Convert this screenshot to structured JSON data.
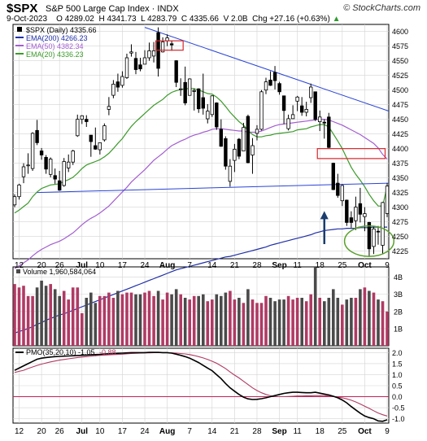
{
  "header": {
    "symbol": "$SPX",
    "name": "S&P 500 Large Cap Index",
    "exchange": "INDX",
    "watermark": "© StockCharts.com",
    "date": "9-Oct-2023",
    "open": "O 4289.02",
    "high": "H 4341.73",
    "low": "L 4283.79",
    "close": "C 4335.66",
    "volume": "V 2.0B",
    "change": "Chg +27.16 (+0.63%)",
    "change_arrow": "▲"
  },
  "price_legend": [
    {
      "text": "$SPX (Daily) 4335.66",
      "color": "#000000",
      "swatch": "box"
    },
    {
      "text": "EMA(200) 4266.23",
      "color": "#1f2fa6",
      "swatch": "line"
    },
    {
      "text": "EMA(50) 4382.34",
      "color": "#a35ed0",
      "swatch": "line"
    },
    {
      "text": "EMA(20) 4336.23",
      "color": "#3c9a2a",
      "swatch": "line"
    }
  ],
  "volume_legend": "Volume 1,960,584,064",
  "pmo_legend": {
    "text": "PMO(35,20,10) -1.05,",
    "signal_text": "-0.88"
  },
  "colors": {
    "price_up": "#ffffff",
    "price_down": "#000000",
    "ema200": "#1f2fa6",
    "ema50": "#a35ed0",
    "ema20": "#3c9a2a",
    "trendline": "#2a45d6",
    "vol_up": "#b03a64",
    "vol_down": "#4a4a4a",
    "pmo": "#000000",
    "pmo_signal": "#b03a64",
    "zero_line": "#c0245a",
    "box": "#d6262b",
    "ellipse": "#5aa02c",
    "arrow": "#1a3d6e",
    "grid": "#d3d3d3"
  },
  "chart_data": {
    "type": "candlestick",
    "price_axis": {
      "ticks": [
        4225,
        4250,
        4275,
        4300,
        4325,
        4350,
        4375,
        4400,
        4425,
        4450,
        4475,
        4500,
        4525,
        4550,
        4575,
        4600
      ],
      "range": [
        4212,
        4612
      ]
    },
    "volume_axis": {
      "ticks": [
        "1B",
        "2B",
        "3B",
        "4B"
      ],
      "values": [
        1,
        2,
        3,
        4
      ],
      "range": [
        0,
        4.6
      ]
    },
    "pmo_axis": {
      "ticks": [
        "-1.0",
        "-0.5",
        "0.0",
        "0.5",
        "1.0",
        "1.5",
        "2.0"
      ],
      "values": [
        -1.0,
        -0.5,
        0.0,
        0.5,
        1.0,
        1.5,
        2.0
      ],
      "range": [
        -1.2,
        2.2
      ]
    },
    "x_axis": {
      "labels": [
        {
          "text": "12",
          "date": "2023-06-12",
          "bold": false
        },
        {
          "text": "20",
          "date": "2023-06-20",
          "bold": false
        },
        {
          "text": "26",
          "date": "2023-06-26",
          "bold": false
        },
        {
          "text": "Jul",
          "date": "2023-07-03",
          "bold": true
        },
        {
          "text": "10",
          "date": "2023-07-10",
          "bold": false
        },
        {
          "text": "17",
          "date": "2023-07-17",
          "bold": false
        },
        {
          "text": "24",
          "date": "2023-07-24",
          "bold": false
        },
        {
          "text": "Aug",
          "date": "2023-07-31",
          "bold": true
        },
        {
          "text": "7",
          "date": "2023-08-07",
          "bold": false
        },
        {
          "text": "14",
          "date": "2023-08-14",
          "bold": false
        },
        {
          "text": "21",
          "date": "2023-08-21",
          "bold": false
        },
        {
          "text": "28",
          "date": "2023-08-28",
          "bold": false
        },
        {
          "text": "Sep",
          "date": "2023-09-05",
          "bold": true
        },
        {
          "text": "11",
          "date": "2023-09-11",
          "bold": false
        },
        {
          "text": "18",
          "date": "2023-09-18",
          "bold": false
        },
        {
          "text": "25",
          "date": "2023-09-25",
          "bold": false
        },
        {
          "text": "Oct",
          "date": "2023-10-02",
          "bold": true
        },
        {
          "text": "9",
          "date": "2023-10-09",
          "bold": false
        }
      ]
    },
    "dates": [
      "2023-06-09",
      "2023-06-12",
      "2023-06-13",
      "2023-06-14",
      "2023-06-15",
      "2023-06-16",
      "2023-06-20",
      "2023-06-21",
      "2023-06-22",
      "2023-06-23",
      "2023-06-26",
      "2023-06-27",
      "2023-06-28",
      "2023-06-29",
      "2023-06-30",
      "2023-07-03",
      "2023-07-05",
      "2023-07-06",
      "2023-07-07",
      "2023-07-10",
      "2023-07-11",
      "2023-07-12",
      "2023-07-13",
      "2023-07-14",
      "2023-07-17",
      "2023-07-18",
      "2023-07-19",
      "2023-07-20",
      "2023-07-21",
      "2023-07-24",
      "2023-07-25",
      "2023-07-26",
      "2023-07-27",
      "2023-07-28",
      "2023-07-31",
      "2023-08-01",
      "2023-08-02",
      "2023-08-03",
      "2023-08-04",
      "2023-08-07",
      "2023-08-08",
      "2023-08-09",
      "2023-08-10",
      "2023-08-11",
      "2023-08-14",
      "2023-08-15",
      "2023-08-16",
      "2023-08-17",
      "2023-08-18",
      "2023-08-21",
      "2023-08-22",
      "2023-08-23",
      "2023-08-24",
      "2023-08-25",
      "2023-08-28",
      "2023-08-29",
      "2023-08-30",
      "2023-08-31",
      "2023-09-01",
      "2023-09-05",
      "2023-09-06",
      "2023-09-07",
      "2023-09-08",
      "2023-09-11",
      "2023-09-12",
      "2023-09-13",
      "2023-09-14",
      "2023-09-15",
      "2023-09-18",
      "2023-09-19",
      "2023-09-20",
      "2023-09-21",
      "2023-09-22",
      "2023-09-25",
      "2023-09-26",
      "2023-09-27",
      "2023-09-28",
      "2023-09-29",
      "2023-10-02",
      "2023-10-03",
      "2023-10-04",
      "2023-10-05",
      "2023-10-06",
      "2023-10-09"
    ],
    "ohlc": [
      [
        4304,
        4322,
        4300,
        4318
      ],
      [
        4318,
        4340,
        4313,
        4338
      ],
      [
        4352,
        4375,
        4341,
        4369
      ],
      [
        4372,
        4392,
        4357,
        4372
      ],
      [
        4366,
        4428,
        4362,
        4426
      ],
      [
        4431,
        4449,
        4406,
        4410
      ],
      [
        4396,
        4401,
        4381,
        4389
      ],
      [
        4385,
        4389,
        4357,
        4365
      ],
      [
        4356,
        4385,
        4351,
        4382
      ],
      [
        4354,
        4366,
        4340,
        4348
      ],
      [
        4345,
        4362,
        4328,
        4329
      ],
      [
        4337,
        4384,
        4335,
        4378
      ],
      [
        4367,
        4390,
        4360,
        4377
      ],
      [
        4377,
        4398,
        4372,
        4396
      ],
      [
        4422,
        4458,
        4420,
        4450
      ],
      [
        4450,
        4457,
        4442,
        4456
      ],
      [
        4450,
        4457,
        4437,
        4446
      ],
      [
        4423,
        4423,
        4386,
        4412
      ],
      [
        4405,
        4436,
        4398,
        4399
      ],
      [
        4398,
        4410,
        4390,
        4410
      ],
      [
        4415,
        4443,
        4412,
        4439
      ],
      [
        4467,
        4488,
        4457,
        4472
      ],
      [
        4491,
        4517,
        4486,
        4510
      ],
      [
        4514,
        4528,
        4497,
        4505
      ],
      [
        4508,
        4532,
        4504,
        4523
      ],
      [
        4521,
        4562,
        4519,
        4555
      ],
      [
        4563,
        4578,
        4557,
        4565
      ],
      [
        4554,
        4565,
        4527,
        4535
      ],
      [
        4543,
        4555,
        4532,
        4536
      ],
      [
        4544,
        4568,
        4545,
        4555
      ],
      [
        4555,
        4581,
        4550,
        4567
      ],
      [
        4558,
        4582,
        4547,
        4567
      ],
      [
        4598,
        4607,
        4523,
        4537
      ],
      [
        4565,
        4590,
        4564,
        4582
      ],
      [
        4584,
        4595,
        4575,
        4589
      ],
      [
        4579,
        4584,
        4567,
        4577
      ],
      [
        4550,
        4551,
        4505,
        4513
      ],
      [
        4501,
        4520,
        4490,
        4502
      ],
      [
        4513,
        4540,
        4474,
        4478
      ],
      [
        4491,
        4520,
        4491,
        4519
      ],
      [
        4498,
        4503,
        4465,
        4499
      ],
      [
        4502,
        4503,
        4461,
        4468
      ],
      [
        4487,
        4528,
        4458,
        4469
      ],
      [
        4451,
        4476,
        4443,
        4464
      ],
      [
        4458,
        4491,
        4454,
        4490
      ],
      [
        4478,
        4479,
        4432,
        4437
      ],
      [
        4433,
        4450,
        4403,
        4404
      ],
      [
        4417,
        4421,
        4364,
        4370
      ],
      [
        4344,
        4382,
        4335,
        4370
      ],
      [
        4380,
        4408,
        4360,
        4399
      ],
      [
        4416,
        4418,
        4382,
        4387
      ],
      [
        4396,
        4444,
        4396,
        4436
      ],
      [
        4455,
        4458,
        4375,
        4376
      ],
      [
        4389,
        4418,
        4357,
        4405
      ],
      [
        4426,
        4440,
        4414,
        4433
      ],
      [
        4433,
        4500,
        4431,
        4497
      ],
      [
        4500,
        4521,
        4493,
        4514
      ],
      [
        4517,
        4532,
        4507,
        4508
      ],
      [
        4530,
        4541,
        4501,
        4516
      ],
      [
        4511,
        4514,
        4492,
        4497
      ],
      [
        4490,
        4490,
        4442,
        4465
      ],
      [
        4434,
        4458,
        4431,
        4451
      ],
      [
        4451,
        4474,
        4451,
        4458
      ],
      [
        4481,
        4490,
        4464,
        4488
      ],
      [
        4473,
        4488,
        4456,
        4462
      ],
      [
        4462,
        4480,
        4455,
        4467
      ],
      [
        4487,
        4511,
        4478,
        4505
      ],
      [
        4497,
        4497,
        4447,
        4450
      ],
      [
        4446,
        4465,
        4430,
        4454
      ],
      [
        4445,
        4450,
        4417,
        4444
      ],
      [
        4454,
        4461,
        4401,
        4402
      ],
      [
        4375,
        4376,
        4329,
        4330
      ],
      [
        4341,
        4357,
        4316,
        4320
      ],
      [
        4311,
        4339,
        4302,
        4337
      ],
      [
        4312,
        4313,
        4268,
        4274
      ],
      [
        4282,
        4293,
        4265,
        4274
      ],
      [
        4277,
        4318,
        4261,
        4300
      ],
      [
        4306,
        4333,
        4274,
        4288
      ],
      [
        4284,
        4300,
        4259,
        4289
      ],
      [
        4274,
        4275,
        4216,
        4229
      ],
      [
        4233,
        4268,
        4220,
        4263
      ],
      [
        4259,
        4268,
        4236,
        4258
      ],
      [
        4235,
        4309,
        4220,
        4308
      ],
      [
        4289,
        4341,
        4283,
        4336
      ]
    ],
    "volume_billions": [
      3.6,
      3.4,
      3.5,
      2.9,
      2.9,
      3.4,
      3.8,
      3.5,
      3.6,
      3.3,
      2.9,
      3.2,
      2.7,
      3.4,
      3.4,
      1.9,
      2.8,
      3.1,
      2.5,
      2.9,
      2.9,
      3.1,
      2.8,
      3.2,
      3.0,
      3.1,
      3.1,
      3.0,
      3.0,
      3.1,
      3.2,
      2.9,
      3.2,
      2.7,
      3.1,
      3.0,
      3.3,
      3.0,
      2.8,
      2.7,
      2.9,
      2.9,
      3.0,
      2.6,
      2.7,
      3.0,
      2.9,
      3.1,
      3.2,
      2.7,
      2.8,
      2.5,
      3.3,
      2.7,
      2.5,
      2.5,
      2.9,
      2.8,
      2.6,
      2.7,
      2.7,
      2.9,
      2.7,
      2.8,
      2.8,
      2.6,
      3.0,
      4.8,
      2.8,
      2.6,
      2.8,
      3.3,
      2.8,
      2.4,
      2.7,
      2.8,
      2.8,
      3.3,
      3.4,
      3.2,
      3.1,
      2.7,
      2.6,
      2.0
    ],
    "ema200": [
      4085,
      4088,
      4090,
      4093,
      4096,
      4100,
      4103,
      4107,
      4110,
      4113,
      4116,
      4118,
      4121,
      4124,
      4127,
      4130,
      4133,
      4136,
      4139,
      4142,
      4145,
      4148,
      4151,
      4154,
      4157,
      4160,
      4163,
      4166,
      4169,
      4172,
      4175,
      4178,
      4181,
      4184,
      4187,
      4190,
      4193,
      4195,
      4197,
      4199,
      4201,
      4203,
      4205,
      4207,
      4209,
      4211,
      4213,
      4215,
      4216,
      4218,
      4220,
      4222,
      4224,
      4226,
      4228,
      4230,
      4232,
      4235,
      4237,
      4239,
      4241,
      4243,
      4245,
      4247,
      4249,
      4251,
      4253,
      4256,
      4258,
      4260,
      4261,
      4262,
      4263,
      4263,
      4264,
      4264,
      4264,
      4265,
      4265,
      4265,
      4266,
      4266,
      4266,
      4266
    ],
    "ema50": [
      4195,
      4200,
      4205,
      4210,
      4217,
      4223,
      4228,
      4232,
      4236,
      4239,
      4242,
      4246,
      4251,
      4256,
      4263,
      4270,
      4276,
      4281,
      4285,
      4290,
      4296,
      4302,
      4310,
      4318,
      4326,
      4334,
      4343,
      4350,
      4357,
      4364,
      4372,
      4380,
      4386,
      4392,
      4399,
      4405,
      4409,
      4413,
      4416,
      4420,
      4423,
      4425,
      4428,
      4430,
      4433,
      4434,
      4434,
      4433,
      4432,
      4431,
      4430,
      4430,
      4428,
      4428,
      4428,
      4430,
      4433,
      4436,
      4439,
      4441,
      4442,
      4443,
      4444,
      4445,
      4446,
      4447,
      4448,
      4449,
      4450,
      4450,
      4449,
      4446,
      4443,
      4440,
      4436,
      4432,
      4428,
      4424,
      4419,
      4414,
      4409,
      4401,
      4390,
      4382
    ],
    "ema20": [
      4290,
      4295,
      4301,
      4307,
      4318,
      4326,
      4332,
      4335,
      4338,
      4339,
      4340,
      4344,
      4347,
      4351,
      4358,
      4366,
      4372,
      4375,
      4378,
      4381,
      4386,
      4392,
      4400,
      4409,
      4417,
      4428,
      4438,
      4446,
      4453,
      4460,
      4467,
      4474,
      4479,
      4484,
      4491,
      4496,
      4499,
      4501,
      4502,
      4503,
      4502,
      4500,
      4497,
      4494,
      4493,
      4488,
      4481,
      4472,
      4462,
      4454,
      4446,
      4440,
      4431,
      4424,
      4420,
      4420,
      4422,
      4423,
      4425,
      4426,
      4427,
      4428,
      4429,
      4432,
      4433,
      4434,
      4437,
      4439,
      4441,
      4441,
      4437,
      4425,
      4413,
      4400,
      4384,
      4368,
      4356,
      4346,
      4335,
      4322,
      4311,
      4302,
      4302,
      4336
    ],
    "pmo": [
      1.2,
      1.3,
      1.4,
      1.5,
      1.6,
      1.7,
      1.75,
      1.78,
      1.8,
      1.82,
      1.83,
      1.84,
      1.85,
      1.86,
      1.87,
      1.88,
      1.89,
      1.9,
      1.91,
      1.92,
      1.94,
      1.95,
      1.96,
      1.97,
      1.98,
      1.99,
      2.0,
      2.0,
      2.0,
      2.0,
      2.01,
      2.01,
      2.01,
      2.0,
      2.0,
      1.98,
      1.93,
      1.88,
      1.82,
      1.75,
      1.65,
      1.55,
      1.42,
      1.3,
      1.18,
      1.0,
      0.82,
      0.6,
      0.4,
      0.25,
      0.1,
      -0.02,
      -0.1,
      -0.13,
      -0.12,
      -0.09,
      -0.05,
      0.0,
      0.05,
      0.1,
      0.15,
      0.18,
      0.2,
      0.2,
      0.19,
      0.18,
      0.18,
      0.2,
      0.16,
      0.12,
      0.08,
      0.02,
      -0.05,
      -0.15,
      -0.28,
      -0.45,
      -0.6,
      -0.75,
      -0.88,
      -0.95,
      -1.0,
      -1.1,
      -1.12,
      -1.05
    ],
    "pmo_signal": [
      1.1,
      1.15,
      1.2,
      1.28,
      1.35,
      1.42,
      1.48,
      1.53,
      1.58,
      1.62,
      1.66,
      1.69,
      1.72,
      1.75,
      1.78,
      1.8,
      1.82,
      1.84,
      1.86,
      1.88,
      1.89,
      1.9,
      1.91,
      1.92,
      1.93,
      1.95,
      1.96,
      1.97,
      1.98,
      1.99,
      1.99,
      2.0,
      2.0,
      2.0,
      2.0,
      1.99,
      1.98,
      1.96,
      1.94,
      1.91,
      1.87,
      1.82,
      1.76,
      1.69,
      1.61,
      1.52,
      1.4,
      1.28,
      1.12,
      0.98,
      0.85,
      0.7,
      0.55,
      0.4,
      0.28,
      0.18,
      0.1,
      0.04,
      0.01,
      0.0,
      0.0,
      0.01,
      0.02,
      0.03,
      0.03,
      0.04,
      0.04,
      0.05,
      0.05,
      0.05,
      0.03,
      0.01,
      -0.02,
      -0.05,
      -0.1,
      -0.16,
      -0.24,
      -0.33,
      -0.43,
      -0.53,
      -0.64,
      -0.74,
      -0.82,
      -0.88
    ],
    "annotations": {
      "upper_trendline": {
        "points": [
          [
            "2023-07-24",
            4607
          ],
          [
            "2023-10-09",
            4465
          ]
        ]
      },
      "lower_trendline": {
        "points": [
          [
            "2023-06-16",
            4325
          ],
          [
            "2023-10-09",
            4341
          ]
        ]
      },
      "red_boxes": [
        {
          "from": "2023-07-27",
          "to": "2023-08-03",
          "price_from": 4568,
          "price_to": 4584
        },
        {
          "from": "2023-09-18",
          "to": "2023-10-06",
          "price_from": 4383,
          "price_to": 4400
        }
      ],
      "ellipse": {
        "center_date": "2023-10-03",
        "center_price": 4242,
        "half_width_days": 5.5,
        "half_height_price": 26
      },
      "arrow": {
        "date": "2023-09-19",
        "price_from": 4237,
        "price_to": 4292
      }
    }
  }
}
